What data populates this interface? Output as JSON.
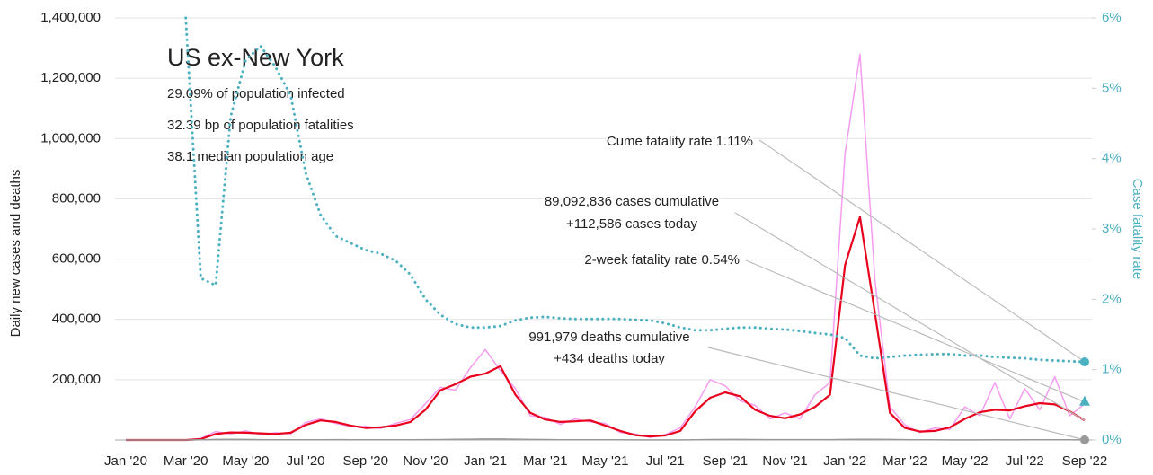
{
  "chart_data": {
    "type": "line",
    "title": "US ex-New York",
    "stats": [
      "29.09% of population infected",
      "32.39 bp of population fatalities",
      "38.1 median population age"
    ],
    "annotations": [
      "Cume fatality rate 1.11%",
      "89,092,836 cases cumulative",
      "+112,586 cases today",
      "2-week fatality rate 0.54%",
      "991,979 deaths cumulative",
      "+434 deaths today"
    ],
    "ylabel": "Daily new cases and deaths",
    "y2label": "Case fatality rate",
    "categories": [
      "Jan '20",
      null,
      null,
      null,
      "Mar '20",
      null,
      null,
      null,
      "May '20",
      null,
      null,
      null,
      "Jul '20",
      null,
      null,
      null,
      "Sep '20",
      null,
      null,
      null,
      "Nov '20",
      null,
      null,
      null,
      "Jan '21",
      null,
      null,
      null,
      "Mar '21",
      null,
      null,
      null,
      "May '21",
      null,
      null,
      null,
      "Jul '21",
      null,
      null,
      null,
      "Sep '21",
      null,
      null,
      null,
      "Nov '21",
      null,
      null,
      null,
      "Jan '22",
      null,
      null,
      null,
      "Mar '22",
      null,
      null,
      null,
      "May '22",
      null,
      null,
      null,
      "Jul '22",
      null,
      null,
      null,
      "Sep '22"
    ],
    "series": [
      {
        "color": "#f59cf0",
        "values": [
          0,
          0,
          0,
          0,
          0,
          5000,
          28000,
          20000,
          30000,
          18000,
          24000,
          20000,
          58000,
          70000,
          55000,
          45000,
          46000,
          38000,
          55000,
          68000,
          120000,
          175000,
          165000,
          240000,
          300000,
          230000,
          170000,
          80000,
          75000,
          52000,
          70000,
          60000,
          55000,
          25000,
          20000,
          8000,
          18000,
          40000,
          110000,
          200000,
          180000,
          130000,
          115000,
          70000,
          90000,
          70000,
          150000,
          190000,
          950000,
          1280000,
          530000,
          110000,
          50000,
          25000,
          40000,
          35000,
          110000,
          80000,
          190000,
          70000,
          170000,
          100000,
          210000,
          80000,
          120000
        ]
      },
      {
        "color": "#e8001c",
        "values": [
          0,
          0,
          0,
          0,
          0,
          3000,
          20000,
          25000,
          24000,
          22000,
          20000,
          24000,
          50000,
          65000,
          60000,
          48000,
          40000,
          42000,
          48000,
          60000,
          100000,
          165000,
          185000,
          210000,
          220000,
          245000,
          150000,
          90000,
          68000,
          60000,
          62000,
          65000,
          48000,
          30000,
          16000,
          12000,
          15000,
          30000,
          95000,
          140000,
          158000,
          145000,
          100000,
          80000,
          72000,
          85000,
          110000,
          150000,
          580000,
          740000,
          420000,
          90000,
          40000,
          28000,
          30000,
          42000,
          70000,
          92000,
          100000,
          98000,
          112000,
          122000,
          118000,
          95000,
          65000
        ]
      },
      {
        "color": "#999999",
        "values": [
          0,
          0,
          0,
          0,
          0,
          500,
          1800,
          2000,
          1700,
          1300,
          900,
          700,
          800,
          1000,
          1100,
          900,
          800,
          800,
          750,
          800,
          1100,
          1600,
          2300,
          2700,
          3200,
          3300,
          2800,
          1900,
          1400,
          1000,
          800,
          750,
          650,
          500,
          350,
          250,
          250,
          300,
          800,
          1400,
          1900,
          1900,
          1600,
          1300,
          1100,
          1200,
          1300,
          1300,
          1800,
          2400,
          2500,
          1800,
          1100,
          700,
          450,
          350,
          350,
          400,
          450,
          400,
          450,
          450,
          500,
          500,
          400
        ]
      },
      {
        "color": "#4bb0c0",
        "axis": "y2",
        "dashed": true,
        "values": [
          null,
          null,
          null,
          null,
          6.0,
          2.3,
          2.2,
          4.6,
          5.4,
          5.6,
          5.3,
          4.9,
          3.8,
          3.2,
          2.9,
          2.8,
          2.7,
          2.65,
          2.55,
          2.35,
          2.0,
          1.78,
          1.65,
          1.6,
          1.6,
          1.62,
          1.7,
          1.74,
          1.75,
          1.73,
          1.72,
          1.72,
          1.72,
          1.72,
          1.71,
          1.7,
          1.66,
          1.6,
          1.56,
          1.56,
          1.58,
          1.6,
          1.6,
          1.58,
          1.57,
          1.55,
          1.52,
          1.5,
          1.45,
          1.2,
          1.16,
          1.18,
          1.2,
          1.21,
          1.22,
          1.22,
          1.2,
          1.2,
          1.18,
          1.17,
          1.16,
          1.14,
          1.13,
          1.12,
          1.11
        ]
      }
    ],
    "two_week_fatality_rate": 0.54,
    "ylim": [
      0,
      1400000
    ],
    "yticks": [
      {
        "value": 200000,
        "label": "200,000"
      },
      {
        "value": 400000,
        "label": "400,000"
      },
      {
        "value": 600000,
        "label": "600,000"
      },
      {
        "value": 800000,
        "label": "800,000"
      },
      {
        "value": 1000000,
        "label": "1,000,000"
      },
      {
        "value": 1200000,
        "label": "1,200,000"
      },
      {
        "value": 1400000,
        "label": "1,400,000"
      }
    ],
    "y2lim": [
      0,
      6
    ],
    "y2ticks": [
      {
        "value": 0,
        "label": "0%"
      },
      {
        "value": 1,
        "label": "1%"
      },
      {
        "value": 2,
        "label": "2%"
      },
      {
        "value": 3,
        "label": "3%"
      },
      {
        "value": 4,
        "label": "4%"
      },
      {
        "value": 5,
        "label": "5%"
      },
      {
        "value": 6,
        "label": "6%"
      }
    ],
    "grid": true
  }
}
